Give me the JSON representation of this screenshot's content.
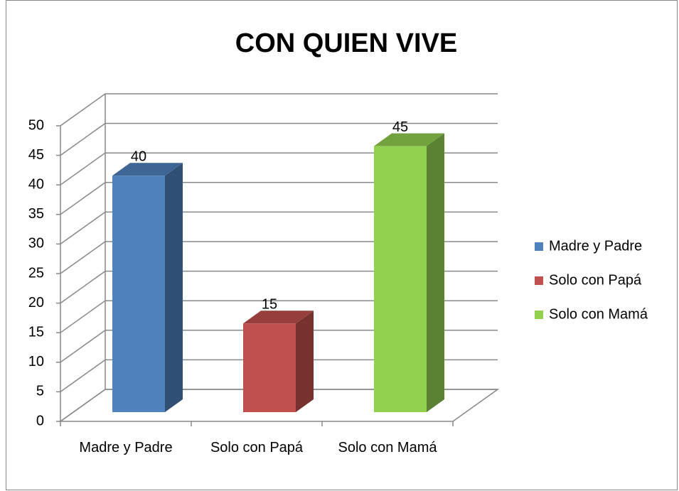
{
  "chart_data": {
    "type": "bar3d",
    "title": "CON QUIEN VIVE",
    "categories": [
      "Madre y Padre",
      "Solo con Papá",
      "Solo con Mamá"
    ],
    "values": [
      40,
      15,
      45
    ],
    "colors": [
      "#4f81bd",
      "#c0504d",
      "#92d050"
    ],
    "ylim": [
      0,
      50
    ],
    "yticks": [
      0,
      5,
      10,
      15,
      20,
      25,
      30,
      35,
      40,
      45,
      50
    ],
    "grid": true,
    "legend": "right"
  }
}
